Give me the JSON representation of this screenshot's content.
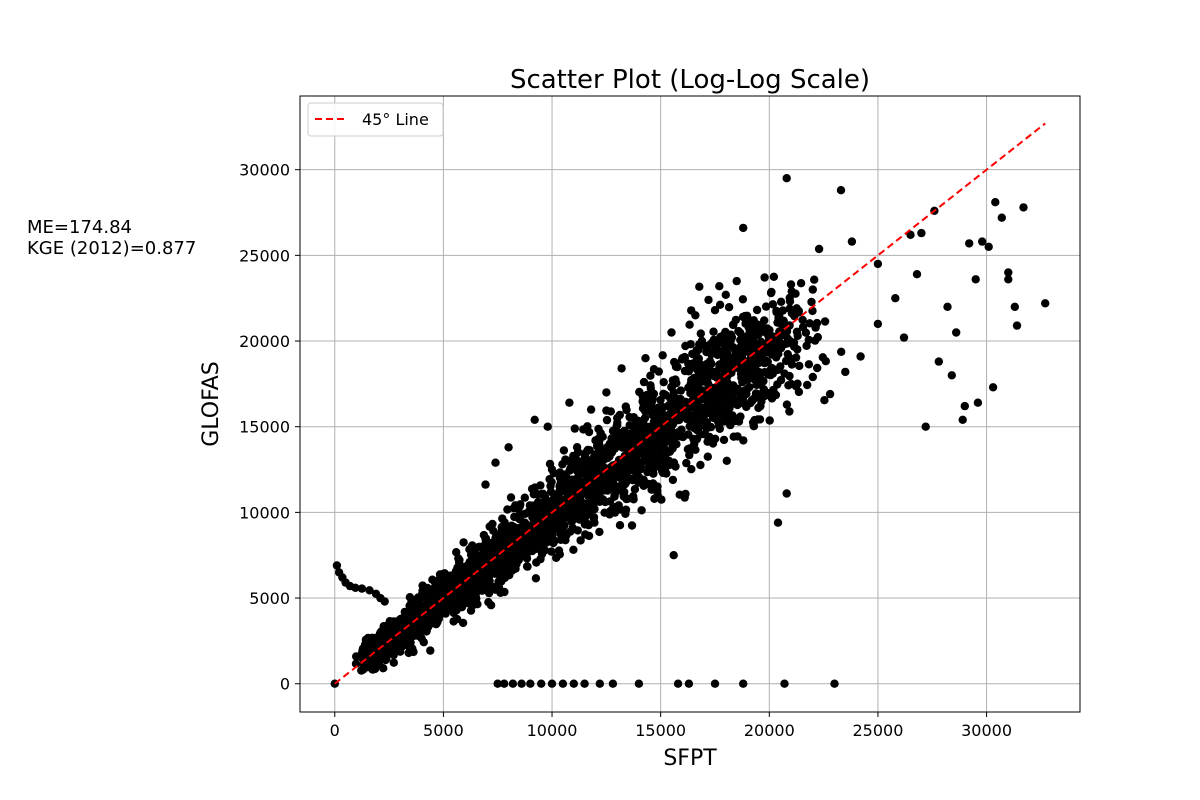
{
  "stats": {
    "me": "ME=174.84",
    "kge": "KGE (2012)=0.877"
  },
  "chart_data": {
    "type": "scatter",
    "title": "Scatter Plot (Log-Log Scale)",
    "xlabel": "SFPT",
    "ylabel": "GLOFAS",
    "xlim": [
      -1600,
      34300
    ],
    "ylim": [
      -1650,
      34300
    ],
    "xticks": [
      0,
      5000,
      10000,
      15000,
      20000,
      25000,
      30000
    ],
    "yticks": [
      0,
      5000,
      10000,
      15000,
      20000,
      25000,
      30000
    ],
    "grid": true,
    "legend": {
      "position": "top-left",
      "entries": [
        "45$^\\circ$ Line"
      ],
      "label_display": "45° Line"
    },
    "series": [
      {
        "name": "45° Line",
        "kind": "line",
        "style": "dashed",
        "color": "#ff0000",
        "x": [
          0,
          32700
        ],
        "y": [
          0,
          32700
        ]
      },
      {
        "kind": "points",
        "color": "#000000",
        "cloud_description": "dense cloud of points along y=x from about (1500,1500) to (21000,21000)",
        "x": [
          0,
          100,
          200,
          350,
          500,
          700,
          950,
          1250,
          1600,
          1900,
          2100,
          2300,
          7500,
          7800,
          8200,
          8600,
          9000,
          9500,
          10000,
          10500,
          11000,
          11500,
          12200,
          12800,
          14000,
          15800,
          16300,
          17500,
          18800,
          20700,
          23000,
          7400,
          8000,
          9200,
          9800,
          10800,
          11800,
          12500,
          13200,
          14300,
          15600,
          16600,
          17700,
          20400,
          20800,
          19100,
          18800,
          20800,
          21000,
          22000,
          23300,
          23800,
          25000,
          26500,
          27000,
          27600,
          28200,
          28600,
          28900,
          29200,
          29500,
          29800,
          30100,
          30400,
          30700,
          31000,
          31300,
          31700,
          32700,
          19800,
          21000,
          22000,
          22800,
          23500,
          24200,
          25000,
          25800,
          26200,
          26800,
          27200,
          27800,
          28400,
          29000,
          29600,
          30300,
          31000,
          31400,
          15500,
          16000,
          16900,
          17500,
          18000,
          18500,
          17200,
          14200,
          13000,
          12000,
          11200,
          10000
        ],
        "y": [
          0,
          6900,
          6500,
          6200,
          5900,
          5700,
          5600,
          5550,
          5450,
          5250,
          5000,
          4800,
          0,
          0,
          0,
          0,
          0,
          0,
          0,
          0,
          0,
          0,
          0,
          0,
          0,
          0,
          0,
          0,
          0,
          0,
          0,
          12900,
          13800,
          15400,
          15000,
          16400,
          16000,
          17000,
          18400,
          19000,
          7500,
          21500,
          23200,
          9400,
          11100,
          21200,
          26600,
          29500,
          23300,
          23000,
          28800,
          25800,
          24500,
          26200,
          26300,
          27600,
          22000,
          20500,
          15400,
          25700,
          23600,
          25800,
          25500,
          28100,
          27200,
          24000,
          22000,
          27800,
          22200,
          16800,
          17500,
          17900,
          16900,
          18200,
          19100,
          21000,
          22500,
          20200,
          23900,
          15000,
          18800,
          18000,
          16200,
          16400,
          17300,
          23600,
          20900,
          20500,
          19000,
          20000,
          21800,
          22700,
          23500,
          22400,
          16400,
          15500,
          14200,
          13500,
          12500
        ]
      }
    ]
  }
}
